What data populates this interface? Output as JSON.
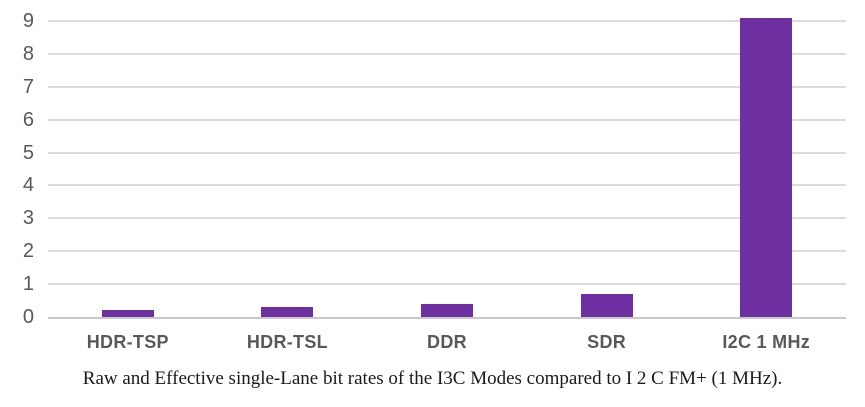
{
  "chart_data": {
    "type": "bar",
    "categories": [
      "HDR-TSP",
      "HDR-TSL",
      "DDR",
      "SDR",
      "I2C 1 MHz"
    ],
    "values": [
      0.2,
      0.3,
      0.4,
      0.7,
      9.1
    ],
    "title": "",
    "xlabel": "",
    "ylabel": "",
    "ylim": [
      0,
      9.6
    ],
    "yticks": [
      0,
      1,
      2,
      3,
      4,
      5,
      6,
      7,
      8,
      9
    ],
    "grid": true,
    "legend": "none",
    "bar_color": "#6E2FA0"
  },
  "caption": "Raw and Effective single-Lane bit rates of the I3C Modes compared to I 2 C FM+ (1 MHz).",
  "colors": {
    "bar": "#6E2FA0",
    "gridline": "#DCDCDC",
    "axis_line": "#C9C9C9",
    "tick_label": "#595959",
    "category_label": "#595959",
    "caption_text": "#1A1A1A",
    "background": "#FFFFFF"
  }
}
